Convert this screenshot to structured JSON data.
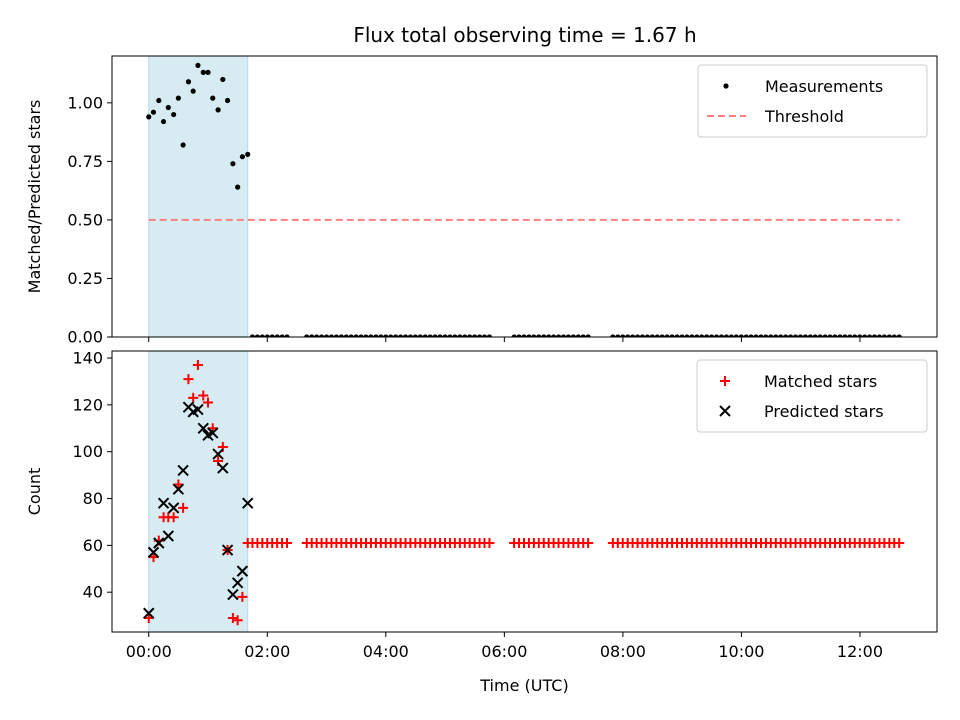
{
  "title": "Flux total observing time = 1.67 h",
  "colors": {
    "shade": "#add8e6",
    "threshold": "#ff7f7f",
    "matched": "#ff0000",
    "predicted": "#000000",
    "measurements": "#000000"
  },
  "chart_data": [
    {
      "type": "scatter",
      "panel": "top",
      "ylabel": "Matched/Predicted stars",
      "xlabel": "",
      "xlim": [
        -0.62,
        13.3
      ],
      "ylim": [
        0.0,
        1.2
      ],
      "yticks": [
        0.0,
        0.25,
        0.5,
        0.75,
        1.0
      ],
      "ytick_labels": [
        "0.00",
        "0.25",
        "0.50",
        "0.75",
        "1.00"
      ],
      "shaded_interval": [
        0.0,
        1.67
      ],
      "legend_position": "upper right",
      "series": [
        {
          "name": "Measurements",
          "marker": "dot",
          "x": [
            0.0,
            0.08,
            0.17,
            0.25,
            0.33,
            0.42,
            0.5,
            0.58,
            0.67,
            0.75,
            0.83,
            0.92,
            1.0,
            1.08,
            1.17,
            1.25,
            1.33,
            1.42,
            1.5,
            1.58,
            1.67
          ],
          "y": [
            0.94,
            0.96,
            1.01,
            0.92,
            0.98,
            0.95,
            1.02,
            0.82,
            1.09,
            1.05,
            1.16,
            1.13,
            1.13,
            1.02,
            0.97,
            1.1,
            1.01,
            0.74,
            0.64,
            0.77,
            0.78
          ]
        },
        {
          "name": "",
          "marker": "dot",
          "x_start": 1.75,
          "x_end": 12.67,
          "x_step": 0.0833,
          "y": 0.0,
          "gaps": [
            [
              2.38,
              2.62
            ],
            [
              5.82,
              6.12
            ],
            [
              7.48,
              7.8
            ]
          ]
        },
        {
          "name": "Threshold",
          "style": "dashed",
          "x": [
            0.0,
            12.67
          ],
          "y": [
            0.5,
            0.5
          ]
        }
      ]
    },
    {
      "type": "scatter",
      "panel": "bottom",
      "ylabel": "Count",
      "xlabel": "Time (UTC)",
      "xlim": [
        -0.62,
        13.3
      ],
      "ylim": [
        23,
        143
      ],
      "yticks": [
        40,
        60,
        80,
        100,
        120,
        140
      ],
      "xticks": [
        0,
        2,
        4,
        6,
        8,
        10,
        12
      ],
      "xtick_labels": [
        "00:00",
        "02:00",
        "04:00",
        "06:00",
        "08:00",
        "10:00",
        "12:00"
      ],
      "shaded_interval": [
        0.0,
        1.67
      ],
      "legend_position": "upper right",
      "series": [
        {
          "name": "Matched stars",
          "marker": "plus",
          "x": [
            0.0,
            0.08,
            0.17,
            0.25,
            0.33,
            0.42,
            0.5,
            0.58,
            0.67,
            0.75,
            0.83,
            0.92,
            1.0,
            1.08,
            1.17,
            1.25,
            1.33,
            1.42,
            1.5,
            1.58,
            1.67
          ],
          "y": [
            29,
            55,
            62,
            72,
            72,
            72,
            86,
            76,
            131,
            123,
            137,
            124,
            121,
            110,
            96,
            102,
            58,
            29,
            28,
            38,
            61
          ]
        },
        {
          "name": "",
          "marker": "plus",
          "x_start": 1.75,
          "x_end": 12.67,
          "x_step": 0.0833,
          "y": 61,
          "gaps": [
            [
              2.38,
              2.62
            ],
            [
              5.82,
              6.12
            ],
            [
              7.48,
              7.8
            ]
          ]
        },
        {
          "name": "Predicted stars",
          "marker": "cross",
          "x": [
            0.0,
            0.08,
            0.17,
            0.25,
            0.33,
            0.42,
            0.5,
            0.58,
            0.67,
            0.75,
            0.83,
            0.92,
            1.0,
            1.08,
            1.17,
            1.25,
            1.33,
            1.42,
            1.5,
            1.58,
            1.67
          ],
          "y": [
            31,
            57,
            61,
            78,
            64,
            76,
            84,
            92,
            119,
            117,
            118,
            110,
            107,
            108,
            99,
            93,
            58,
            39,
            44,
            49,
            78
          ]
        }
      ]
    }
  ]
}
